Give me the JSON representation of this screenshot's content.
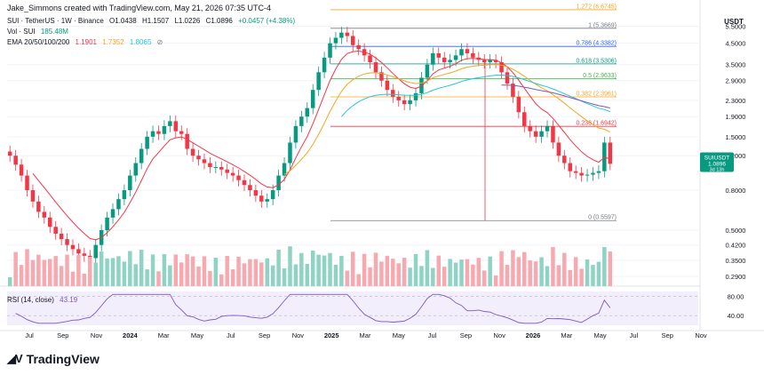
{
  "header": {
    "attribution": "Jake_Simmons created with TradingView.com, May 21, 2026 07:35 UTC-4"
  },
  "legend": {
    "symbol": "SUI · TetherUS · 1W · Binance",
    "open": "O1.0438",
    "high": "H1.1507",
    "low": "L1.0226",
    "close": "C1.0896",
    "change": "+0.0457 (+4.38%)",
    "vol_label": "Vol · SUI",
    "vol_value": "185.48M",
    "ema_label": "EMA 20/50/100/200",
    "ema_values": [
      "1.1901",
      "1.7352",
      "1.8065"
    ],
    "rsi_label": "RSI (14, close)",
    "rsi_value": "43.19"
  },
  "colors": {
    "up": "#089981",
    "down": "#f23645",
    "ema20": "#f23645",
    "ema50": "#f5a623",
    "ema100": "#26c6da",
    "ema200": "#7e57c2",
    "rsi": "#7e57c2"
  },
  "price_axis": {
    "unit": "USDT",
    "ticks": [
      "5.5000",
      "4.5000",
      "3.5000",
      "2.9000",
      "2.3000",
      "1.9000",
      "1.5000",
      "1.2000",
      "0.8000",
      "0.5000",
      "0.4200",
      "0.3500",
      "0.2900"
    ],
    "current_symbol": "SUIUSDT",
    "current_price": "1.0896",
    "countdown": "3d 13h"
  },
  "rsi_axis": {
    "ticks": [
      "80.00",
      "40.00"
    ]
  },
  "time_axis": {
    "labels": [
      "Jul",
      "Sep",
      "Nov",
      "2024",
      "Mar",
      "May",
      "Jul",
      "Sep",
      "Nov",
      "2025",
      "Mar",
      "May",
      "Jul",
      "Sep",
      "Nov",
      "2026",
      "Mar",
      "May",
      "Jul",
      "Sep",
      "Nov"
    ]
  },
  "fib_levels": [
    {
      "label": "1.272 (6.6745)",
      "price": 6.6745,
      "color": "#f5a623"
    },
    {
      "label": "1 (5.3669)",
      "price": 5.3669,
      "color": "#787b86"
    },
    {
      "label": "0.786 (4.3382)",
      "price": 4.3382,
      "color": "#2962ff"
    },
    {
      "label": "0.618 (3.5306)",
      "price": 3.5306,
      "color": "#089981"
    },
    {
      "label": "0.5 (2.9633)",
      "price": 2.9633,
      "color": "#4caf50"
    },
    {
      "label": "0.382 (2.3961)",
      "price": 2.3961,
      "color": "#f5a623"
    },
    {
      "label": "0.236 (1.6942)",
      "price": 1.6942,
      "color": "#f23645"
    },
    {
      "label": "0 (0.5597)",
      "price": 0.5597,
      "color": "#787b86"
    }
  ],
  "chart_data": {
    "type": "candlestick",
    "title": "SUI · TetherUS · 1W · Binance",
    "y_scale": "log",
    "ylim": [
      0.27,
      6.2
    ],
    "grid": true,
    "price_path": [
      1.2,
      1.08,
      0.95,
      0.8,
      0.7,
      0.62,
      0.58,
      0.52,
      0.48,
      0.45,
      0.42,
      0.4,
      0.38,
      0.37,
      0.36,
      0.42,
      0.5,
      0.58,
      0.64,
      0.72,
      0.8,
      0.95,
      1.1,
      1.3,
      1.5,
      1.6,
      1.55,
      1.7,
      1.8,
      1.6,
      1.55,
      1.3,
      1.2,
      1.15,
      1.1,
      1.05,
      1.05,
      1.02,
      0.98,
      0.95,
      0.9,
      0.85,
      0.8,
      0.75,
      0.7,
      0.72,
      0.8,
      0.95,
      1.1,
      1.4,
      1.7,
      1.9,
      2.1,
      2.6,
      3.2,
      3.8,
      4.5,
      4.8,
      5.1,
      4.9,
      4.4,
      4.2,
      3.9,
      3.6,
      3.2,
      2.9,
      2.6,
      2.4,
      2.3,
      2.2,
      2.3,
      2.5,
      3.0,
      3.5,
      4.0,
      3.8,
      3.6,
      3.7,
      3.9,
      4.2,
      4.0,
      3.8,
      3.7,
      3.6,
      3.7,
      3.6,
      3.2,
      2.8,
      2.4,
      2.0,
      1.7,
      1.6,
      1.5,
      1.6,
      1.7,
      1.4,
      1.2,
      1.1,
      1.0,
      0.98,
      0.95,
      0.96,
      0.98,
      1.0,
      1.4,
      1.09
    ]
  },
  "brand": {
    "name": "TradingView"
  }
}
